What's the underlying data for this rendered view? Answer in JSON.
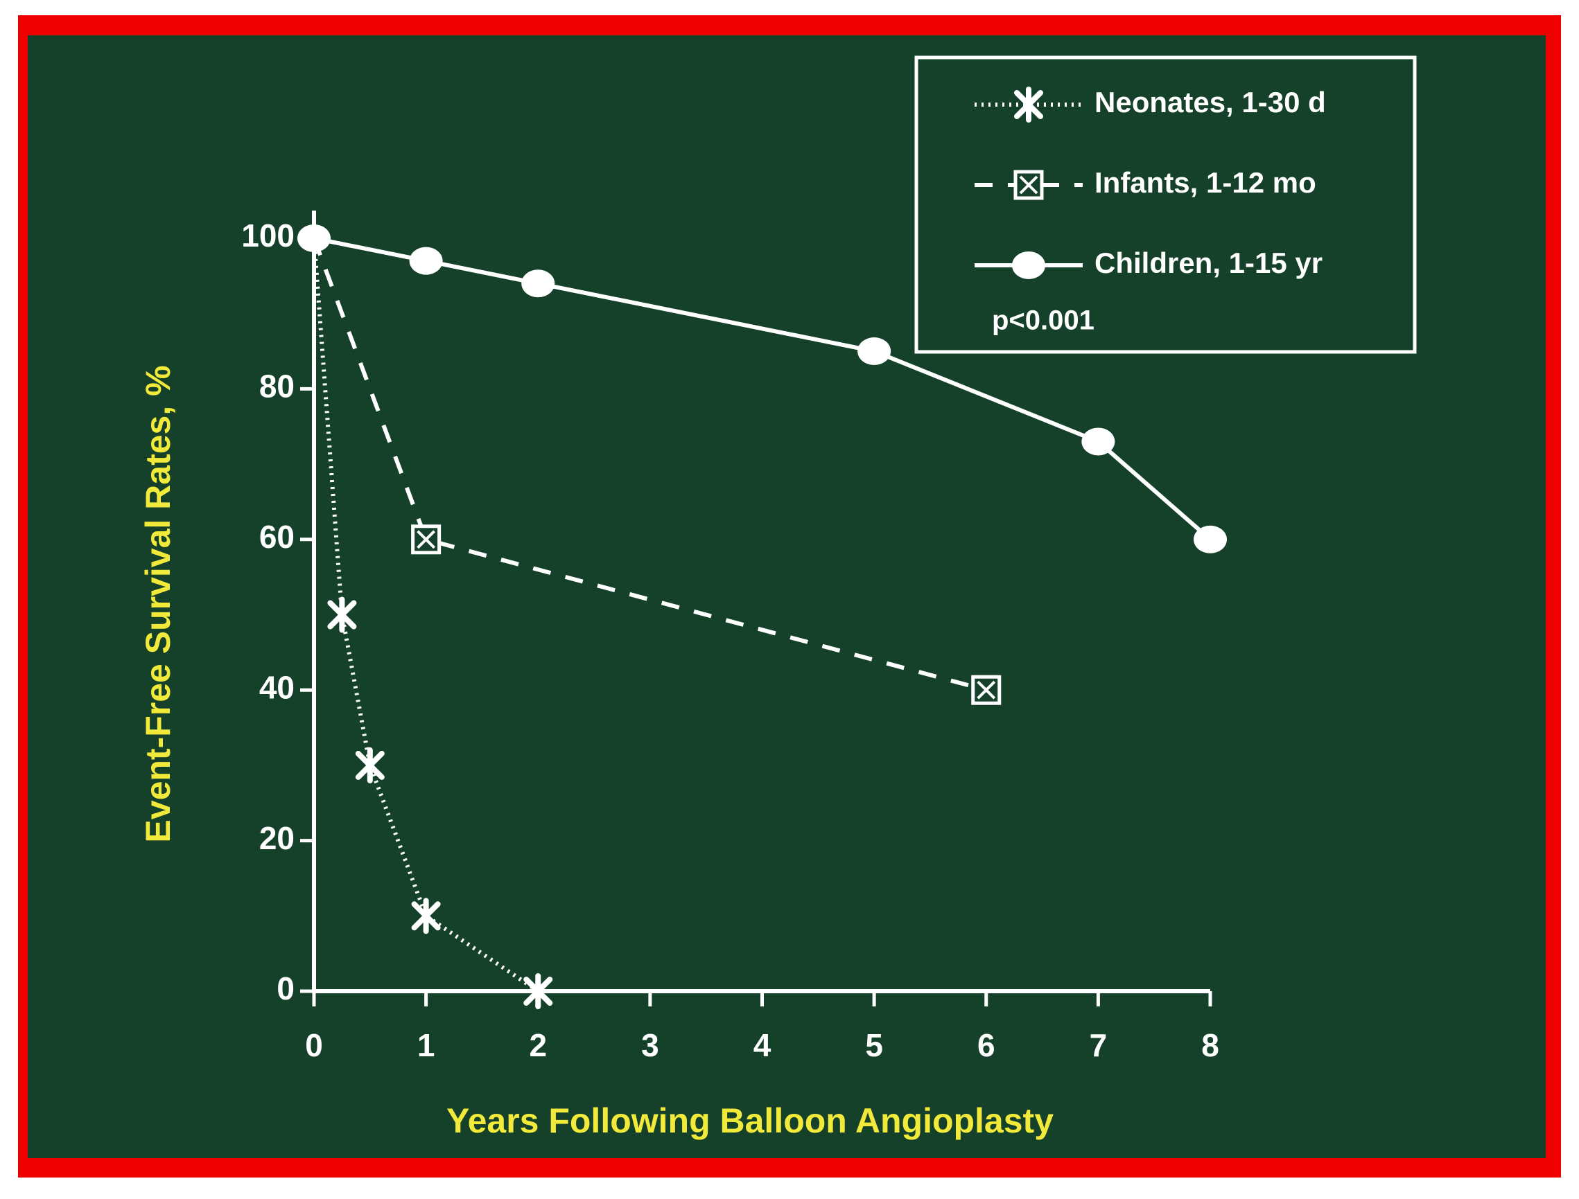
{
  "chart_data": {
    "type": "line",
    "xlabel": "Years Following Balloon Angioplasty",
    "ylabel": "Event-Free Survival Rates, %",
    "xlim": [
      0,
      8
    ],
    "xticks": [
      0,
      1,
      2,
      3,
      4,
      5,
      6,
      7,
      8
    ],
    "ylim": [
      0,
      100
    ],
    "yticks": [
      0,
      20,
      40,
      60,
      80,
      100
    ],
    "legend_position": "upper right",
    "annotation": "p<0.001",
    "series": [
      {
        "name": "Neonates, 1-30 d",
        "color": "#ffffff",
        "dash": "dotted",
        "marker": "asterisk",
        "x": [
          0,
          0.25,
          0.5,
          1,
          2
        ],
        "values": [
          100,
          50,
          30,
          10,
          0
        ]
      },
      {
        "name": "Infants, 1-12 mo",
        "color": "#ffffff",
        "dash": "dashed",
        "marker": "boxed-x",
        "x": [
          0,
          1,
          6
        ],
        "values": [
          100,
          60,
          40
        ]
      },
      {
        "name": "Children, 1-15 yr",
        "color": "#ffffff",
        "dash": "solid",
        "marker": "circle",
        "x": [
          0,
          1,
          2,
          5,
          7,
          8
        ],
        "values": [
          100,
          97,
          94,
          85,
          73,
          60
        ]
      }
    ]
  }
}
